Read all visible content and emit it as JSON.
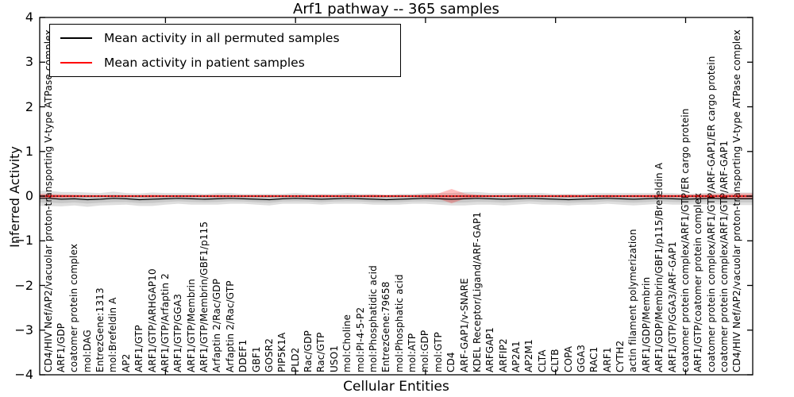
{
  "figure": {
    "title": "Arf1 pathway -- 365 samples",
    "xlabel": "Cellular Entities",
    "ylabel": "Inferred Activity",
    "ytick_labels": [
      "4",
      "3",
      "2",
      "1",
      "0",
      "−1",
      "−2",
      "−3",
      "−4"
    ],
    "legend": {
      "items": [
        {
          "label": "Mean activity in all permuted samples",
          "color": "#000000"
        },
        {
          "label": "Mean activity in patient samples",
          "color": "#ff0000"
        }
      ]
    }
  },
  "chart_data": {
    "type": "line",
    "title": "Arf1 pathway -- 365 samples",
    "xlabel": "Cellular Entities",
    "ylabel": "Inferred Activity",
    "samples": 365,
    "ylim": [
      -4,
      4
    ],
    "yticks": [
      4,
      3,
      2,
      1,
      0,
      -1,
      -2,
      -3,
      -4
    ],
    "grid": false,
    "legend_position": "upper left",
    "zero_line": {
      "y": 0,
      "style": "dotted",
      "color": "#000000"
    },
    "categories": [
      "CD4/HIV Nef/AP2/vacuolar proton-transporting V-type ATPase complex",
      "ARF1/GDP",
      "coatomer protein complex",
      "mol:DAG",
      "EntrezGene:1313",
      "mol:Brefeldin A",
      "AP2",
      "ARF1/GTP",
      "ARF1/GTP/ARHGAP10",
      "ARF1/GTP/Arfaptin 2",
      "ARF1/GTP/GGA3",
      "ARF1/GTP/Membrin",
      "ARF1/GTP/Membrin/GBF1/p115",
      "Arfaptin 2/Rac/GDP",
      "Arfaptin 2/Rac/GTP",
      "DDEF1",
      "GBF1",
      "GOSR2",
      "PIP5K1A",
      "PLD2",
      "Rac/GDP",
      "Rac/GTP",
      "USO1",
      "mol:Choline",
      "mol:PI-4-5-P2",
      "mol:Phosphatidic acid",
      "EntrezGene:79658",
      "mol:Phosphatic acid",
      "mol:ATP",
      "mol:GDP",
      "mol:GTP",
      "CD4",
      "ARF-GAP1/v-SNARE",
      "KDEL Receptor/Ligand/ARF-GAP1",
      "ARFGAP1",
      "ARFIP2",
      "AP2A1",
      "AP2M1",
      "CLTA",
      "CLTB",
      "COPA",
      "GGA3",
      "RAC1",
      "ARF1",
      "CYTH2",
      "actin filament polymerization",
      "ARF1/GDP/Membrin",
      "ARF1/GDP/Membrin/GBF1/p115/Brefeldin A",
      "ARF1/GTP/GGA3/ARF-GAP1",
      "coatomer protein complex/ARF1/GTP/ER cargo protein",
      "ARF1/GTP/coatomer protein complex",
      "coatomer protein complex/ARF1/GTP/ARF-GAP1/ER cargo protein",
      "coatomer protein complex/ARF1/GTP/ARF-GAP1",
      "CD4/HIV Nef/AP2/vacuolar proton-transporting V-type ATPase complex"
    ],
    "series": [
      {
        "name": "Mean activity in all permuted samples",
        "color": "#000000",
        "values": [
          -0.05,
          -0.07,
          -0.06,
          -0.08,
          -0.07,
          -0.05,
          -0.06,
          -0.08,
          -0.07,
          -0.06,
          -0.05,
          -0.06,
          -0.07,
          -0.06,
          -0.05,
          -0.06,
          -0.07,
          -0.08,
          -0.06,
          -0.05,
          -0.06,
          -0.07,
          -0.06,
          -0.05,
          -0.06,
          -0.07,
          -0.08,
          -0.07,
          -0.06,
          -0.05,
          -0.06,
          -0.07,
          -0.06,
          -0.05,
          -0.06,
          -0.07,
          -0.06,
          -0.05,
          -0.06,
          -0.07,
          -0.08,
          -0.07,
          -0.06,
          -0.05,
          -0.06,
          -0.07,
          -0.06,
          -0.05,
          -0.06,
          -0.07,
          -0.06,
          -0.05,
          -0.06,
          -0.06
        ],
        "band_halfwidth": [
          0.17,
          0.16,
          0.15,
          0.16,
          0.14,
          0.15,
          0.13,
          0.14,
          0.15,
          0.13,
          0.12,
          0.13,
          0.12,
          0.13,
          0.12,
          0.11,
          0.12,
          0.13,
          0.11,
          0.12,
          0.11,
          0.12,
          0.11,
          0.12,
          0.11,
          0.12,
          0.11,
          0.12,
          0.11,
          0.12,
          0.13,
          0.14,
          0.15,
          0.14,
          0.13,
          0.14,
          0.13,
          0.12,
          0.13,
          0.12,
          0.13,
          0.12,
          0.13,
          0.12,
          0.13,
          0.14,
          0.13,
          0.12,
          0.13,
          0.12,
          0.12,
          0.13,
          0.13,
          0.14
        ]
      },
      {
        "name": "Mean activity in patient samples",
        "color": "#ff0000",
        "values": [
          0,
          0,
          0,
          0,
          0,
          0,
          0,
          0,
          0,
          0,
          0,
          0,
          0,
          0,
          0,
          0,
          0,
          0,
          0,
          0,
          0,
          0,
          0,
          0,
          0,
          0,
          0,
          0,
          0,
          0,
          0,
          0,
          0,
          0,
          0,
          0,
          0,
          0,
          0,
          0,
          0,
          0,
          0,
          0,
          0,
          0,
          0,
          0,
          0,
          0,
          0,
          0,
          0,
          0
        ],
        "band_halfwidth": [
          0.05,
          0.04,
          0.03,
          0.025,
          0.025,
          0.025,
          0.025,
          0.025,
          0.03,
          0.025,
          0.025,
          0.025,
          0.025,
          0.03,
          0.025,
          0.025,
          0.025,
          0.025,
          0.025,
          0.025,
          0.025,
          0.03,
          0.025,
          0.025,
          0.025,
          0.03,
          0.025,
          0.025,
          0.025,
          0.04,
          0.06,
          0.16,
          0.06,
          0.03,
          0.025,
          0.025,
          0.03,
          0.025,
          0.025,
          0.025,
          0.03,
          0.025,
          0.025,
          0.03,
          0.025,
          0.03,
          0.03,
          0.035,
          0.03,
          0.035,
          0.04,
          0.05,
          0.05,
          0.06
        ]
      }
    ]
  }
}
